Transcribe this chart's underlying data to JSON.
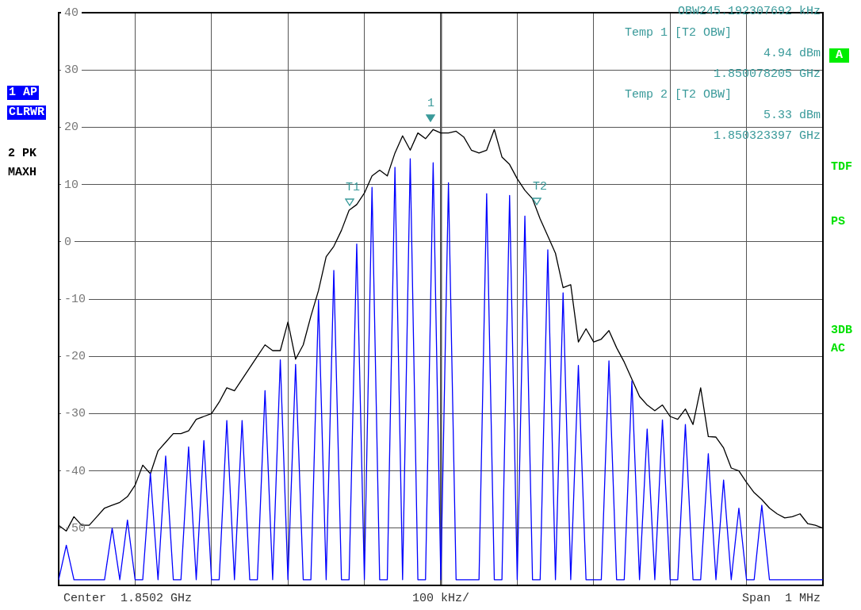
{
  "chart_data": {
    "type": "line",
    "categories": [
      null,
      null,
      null,
      null,
      null,
      null,
      null,
      null,
      null,
      null,
      null,
      null,
      null,
      null,
      null,
      null,
      null,
      null,
      null,
      null,
      null,
      null,
      null,
      null,
      null,
      null,
      null,
      null,
      null,
      null,
      null,
      null,
      null,
      null,
      null,
      null,
      null,
      null,
      null,
      null,
      null,
      null,
      null,
      null,
      null,
      null,
      null,
      null,
      null,
      null,
      null,
      null,
      null,
      null,
      null,
      null,
      null,
      null,
      null,
      null,
      null,
      null,
      null,
      null,
      null,
      null,
      null,
      null,
      null,
      null,
      null,
      null,
      null,
      null,
      null,
      null,
      null,
      null,
      null,
      null,
      null,
      null,
      null,
      null,
      null,
      null,
      null,
      null,
      null,
      null,
      null,
      null,
      null,
      null,
      null,
      null,
      null,
      null,
      null,
      null,
      null
    ],
    "ylim": [
      -60,
      40
    ],
    "yticks": [
      {
        "value": -60,
        "label": null
      },
      -50,
      -40,
      -30,
      -20,
      -10,
      0,
      10,
      20,
      30,
      40
    ],
    "tick_labels": "y",
    "grid": true,
    "legend": false,
    "marker": "none",
    "line_style": "solid",
    "series": [
      {
        "color": "#0000ff",
        "values": [
          -59,
          -53,
          -59,
          -59,
          -59,
          -59,
          -59,
          -50,
          -59,
          -48.6,
          -59,
          -59,
          -40.4,
          -59,
          -37.4,
          -59,
          -59,
          -35.8,
          -59,
          -34.7,
          -59,
          -59,
          -31.2,
          -59,
          -31.2,
          -59,
          -59,
          -26,
          -59,
          -20.6,
          -59,
          -21.4,
          -59,
          -59,
          -10.2,
          -59,
          -5,
          -59,
          -59,
          -0.4,
          -59,
          9.5,
          -59,
          -59,
          13,
          -59,
          14.5,
          -59,
          -59,
          13.8,
          -59,
          10.3,
          -59,
          -59,
          -59,
          -59,
          8.4,
          -59,
          -59,
          8.1,
          -59,
          4.5,
          -59,
          -59,
          -1.4,
          -59,
          -8.9,
          -59,
          -21.6,
          -59,
          -59,
          -59,
          -20.8,
          -59,
          -59,
          -24.3,
          -59,
          -32.7,
          -59,
          -31.1,
          -59,
          -59,
          -31.9,
          -59,
          -59,
          -37,
          -59,
          -41.6,
          -59,
          -46.5,
          -59,
          -59,
          -46,
          -59,
          -59,
          -59,
          -59,
          -59,
          -59,
          -59,
          -59
        ]
      },
      {
        "color": "#000000",
        "values": [
          -49.5,
          -50.5,
          -48,
          -49.5,
          -49.5,
          -48,
          -46.5,
          -46,
          -45.5,
          -44.5,
          -42.5,
          -39,
          -40.5,
          -36.5,
          -35,
          -33.5,
          -33.5,
          -33,
          -31,
          -30.5,
          -30,
          -28,
          -25.5,
          -26,
          -24,
          -22,
          -20,
          -18,
          -19,
          -19,
          -14,
          -20.5,
          -18,
          -13,
          -8.5,
          -2.6,
          -0.8,
          2,
          5.5,
          6.5,
          8.5,
          11.5,
          12.5,
          11.5,
          15.5,
          18.5,
          16,
          19,
          18,
          19.6,
          19,
          19,
          19.3,
          18.3,
          16,
          15.5,
          16,
          19.6,
          14.8,
          13.5,
          11,
          9,
          7.5,
          4,
          1,
          -2,
          -8,
          -7.5,
          -17.5,
          -15.2,
          -17.5,
          -17,
          -15.5,
          -18.5,
          -21,
          -24,
          -27,
          -28.5,
          -29.5,
          -28.5,
          -30.5,
          -31,
          -29.2,
          -31.9,
          -25.5,
          -34,
          -34.1,
          -36,
          -39.5,
          -40,
          -42,
          -43.8,
          -45,
          -46.5,
          -47.5,
          -48.2,
          -48,
          -47.5,
          -49.2,
          -49.5,
          -50
        ]
      }
    ],
    "annotations": [
      "OBW245.192307692 kHz",
      "Temp 1 [T2 OBW]",
      "4.94 dBm",
      "1.850078205 GHz",
      "Temp 2 [T2 OBW]",
      "5.33 dBm",
      "1.850323397 GHz",
      "1",
      "T1",
      "T2",
      "Center  1.8502 GHz",
      "100 kHz/",
      "Span  1 MHz",
      "1 AP",
      "CLRWR",
      "2 PK",
      "MAXH",
      "A",
      "TDF",
      "PS",
      "3DB",
      "AC"
    ]
  }
}
